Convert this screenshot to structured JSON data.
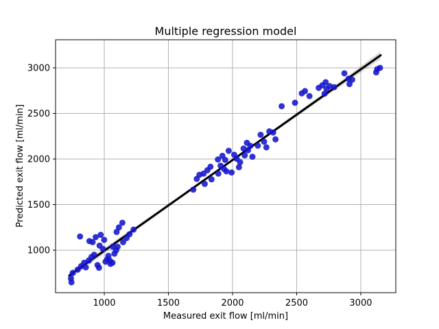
{
  "figure": {
    "background": "#ffffff"
  },
  "chart_data": {
    "type": "scatter",
    "title": "Multiple regression model",
    "xlabel": "Measured exit flow [ml/min]",
    "ylabel": "Predicted exit flow [ml/min]",
    "xlim": [
      620,
      3273
    ],
    "ylim": [
      534,
      3308
    ],
    "x_ticks": [
      1000,
      1500,
      2000,
      2500,
      3000
    ],
    "y_ticks": [
      1000,
      1500,
      2000,
      2500,
      3000
    ],
    "grid": true,
    "legend": "none",
    "colors": {
      "marker": "#1414cd",
      "marker_opacity": 0.88,
      "regression_line": "#000000",
      "confidence_band": "rgba(0,0,0,0.15)",
      "gridline": "#b0b0b0",
      "axis": "#000000"
    },
    "regression_line": {
      "x1": 727,
      "y1": 722,
      "x2": 3155,
      "y2": 3138
    },
    "confidence_band": {
      "halfwidth_center": 15,
      "halfwidth_edge": 42
    },
    "points": [
      [
        740,
        690
      ],
      [
        744,
        648
      ],
      [
        754,
        750
      ],
      [
        793,
        787
      ],
      [
        811,
        1150
      ],
      [
        820,
        825
      ],
      [
        843,
        862
      ],
      [
        856,
        812
      ],
      [
        879,
        887
      ],
      [
        884,
        1100
      ],
      [
        900,
        925
      ],
      [
        909,
        1088
      ],
      [
        921,
        950
      ],
      [
        933,
        1143
      ],
      [
        947,
        837
      ],
      [
        959,
        807
      ],
      [
        963,
        1050
      ],
      [
        972,
        1168
      ],
      [
        990,
        1013
      ],
      [
        999,
        1113
      ],
      [
        1010,
        874
      ],
      [
        1023,
        900
      ],
      [
        1032,
        938
      ],
      [
        1043,
        887
      ],
      [
        1048,
        850
      ],
      [
        1064,
        862
      ],
      [
        1066,
        1038
      ],
      [
        1079,
        962
      ],
      [
        1093,
        1000
      ],
      [
        1096,
        1200
      ],
      [
        1104,
        1038
      ],
      [
        1114,
        1250
      ],
      [
        1141,
        1301
      ],
      [
        1147,
        1088
      ],
      [
        1174,
        1133
      ],
      [
        1197,
        1175
      ],
      [
        1228,
        1226
      ],
      [
        1694,
        1664
      ],
      [
        1721,
        1782
      ],
      [
        1742,
        1827
      ],
      [
        1774,
        1840
      ],
      [
        1783,
        1727
      ],
      [
        1804,
        1877
      ],
      [
        1828,
        1915
      ],
      [
        1836,
        1777
      ],
      [
        1886,
        1995
      ],
      [
        1889,
        1840
      ],
      [
        1907,
        1927
      ],
      [
        1921,
        2035
      ],
      [
        1934,
        1890
      ],
      [
        1943,
        1990
      ],
      [
        1952,
        1865
      ],
      [
        1970,
        2090
      ],
      [
        1993,
        1852
      ],
      [
        2013,
        2047
      ],
      [
        2032,
        2003
      ],
      [
        2050,
        1910
      ],
      [
        2059,
        1965
      ],
      [
        2086,
        2115
      ],
      [
        2095,
        2040
      ],
      [
        2112,
        2178
      ],
      [
        2121,
        2096
      ],
      [
        2139,
        2145
      ],
      [
        2155,
        2025
      ],
      [
        2197,
        2147
      ],
      [
        2219,
        2266
      ],
      [
        2246,
        2190
      ],
      [
        2264,
        2128
      ],
      [
        2287,
        2303
      ],
      [
        2317,
        2291
      ],
      [
        2335,
        2216
      ],
      [
        2383,
        2579
      ],
      [
        2487,
        2617
      ],
      [
        2540,
        2720
      ],
      [
        2565,
        2745
      ],
      [
        2600,
        2690
      ],
      [
        2672,
        2780
      ],
      [
        2700,
        2808
      ],
      [
        2718,
        2717
      ],
      [
        2726,
        2842
      ],
      [
        2733,
        2770
      ],
      [
        2757,
        2800
      ],
      [
        2792,
        2788
      ],
      [
        2872,
        2940
      ],
      [
        2905,
        2880
      ],
      [
        2912,
        2822
      ],
      [
        2933,
        2870
      ],
      [
        3120,
        2950
      ],
      [
        3128,
        2985
      ],
      [
        3150,
        3000
      ]
    ]
  }
}
